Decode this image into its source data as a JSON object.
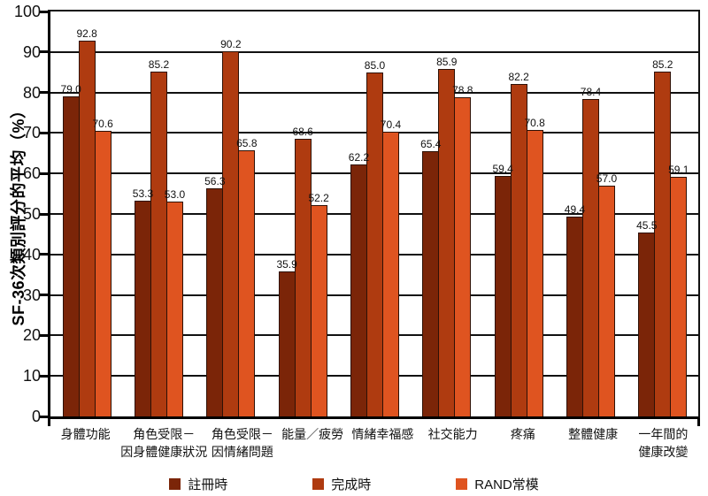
{
  "chart_data": {
    "type": "bar",
    "title": "",
    "xlabel": "",
    "ylabel": "SF-36次類別評分的平均（%）",
    "ylim": [
      0,
      100
    ],
    "ytick_step": 10,
    "yticks": [
      0,
      10,
      20,
      30,
      40,
      50,
      60,
      70,
      80,
      90,
      100
    ],
    "grid": true,
    "legend_position": "bottom",
    "value_labels": true,
    "value_decimals": 1,
    "categories": [
      "身體功能",
      "角色受限－\n因身體健康狀況",
      "角色受限－\n因情緒問題",
      "能量／疲勞",
      "情緒幸福感",
      "社交能力",
      "疼痛",
      "整體健康",
      "一年間的\n健康改變"
    ],
    "series": [
      {
        "name": "註冊時",
        "color": "#7B2508",
        "values": [
          79.0,
          53.3,
          56.3,
          35.9,
          62.2,
          65.4,
          59.4,
          49.4,
          45.5
        ]
      },
      {
        "name": "完成時",
        "color": "#AF3B10",
        "values": [
          92.8,
          85.2,
          90.2,
          68.6,
          85.0,
          85.9,
          82.2,
          78.4,
          85.2
        ]
      },
      {
        "name": "RAND常模",
        "color": "#DF5420",
        "values": [
          70.6,
          53.0,
          65.8,
          52.2,
          70.4,
          78.8,
          70.8,
          57.0,
          59.1
        ]
      }
    ],
    "colors": {
      "axis": "#000000",
      "grid": "#111111",
      "bar_outline": "#2e1106",
      "text": "#111111",
      "background": "#ffffff"
    }
  }
}
